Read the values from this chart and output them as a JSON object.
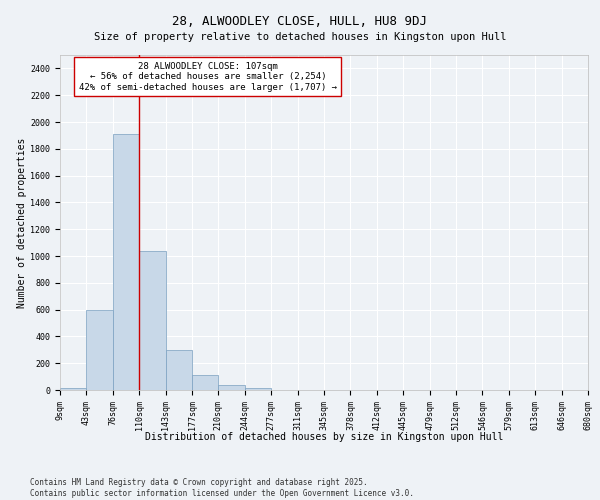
{
  "title": "28, ALWOODLEY CLOSE, HULL, HU8 9DJ",
  "subtitle": "Size of property relative to detached houses in Kingston upon Hull",
  "xlabel": "Distribution of detached houses by size in Kingston upon Hull",
  "ylabel": "Number of detached properties",
  "bins": [
    "9sqm",
    "43sqm",
    "76sqm",
    "110sqm",
    "143sqm",
    "177sqm",
    "210sqm",
    "244sqm",
    "277sqm",
    "311sqm",
    "345sqm",
    "378sqm",
    "412sqm",
    "445sqm",
    "479sqm",
    "512sqm",
    "546sqm",
    "579sqm",
    "613sqm",
    "646sqm",
    "680sqm"
  ],
  "values": [
    15,
    600,
    1910,
    1040,
    295,
    115,
    35,
    18,
    0,
    0,
    0,
    0,
    0,
    0,
    0,
    0,
    0,
    0,
    0,
    0
  ],
  "bar_color": "#c8d8e8",
  "bar_edge_color": "#7aa0c0",
  "vline_x": 3.0,
  "vline_color": "#cc0000",
  "annotation_text": "28 ALWOODLEY CLOSE: 107sqm\n← 56% of detached houses are smaller (2,254)\n42% of semi-detached houses are larger (1,707) →",
  "annotation_box_color": "#ffffff",
  "annotation_box_edge": "#cc0000",
  "ylim": [
    0,
    2500
  ],
  "yticks": [
    0,
    200,
    400,
    600,
    800,
    1000,
    1200,
    1400,
    1600,
    1800,
    2000,
    2200,
    2400
  ],
  "footer": "Contains HM Land Registry data © Crown copyright and database right 2025.\nContains public sector information licensed under the Open Government Licence v3.0.",
  "bg_color": "#eef2f6",
  "plot_bg_color": "#eef2f6",
  "grid_color": "#ffffff",
  "title_fontsize": 9,
  "subtitle_fontsize": 7.5,
  "label_fontsize": 7,
  "tick_fontsize": 6,
  "annot_fontsize": 6.5,
  "footer_fontsize": 5.5
}
